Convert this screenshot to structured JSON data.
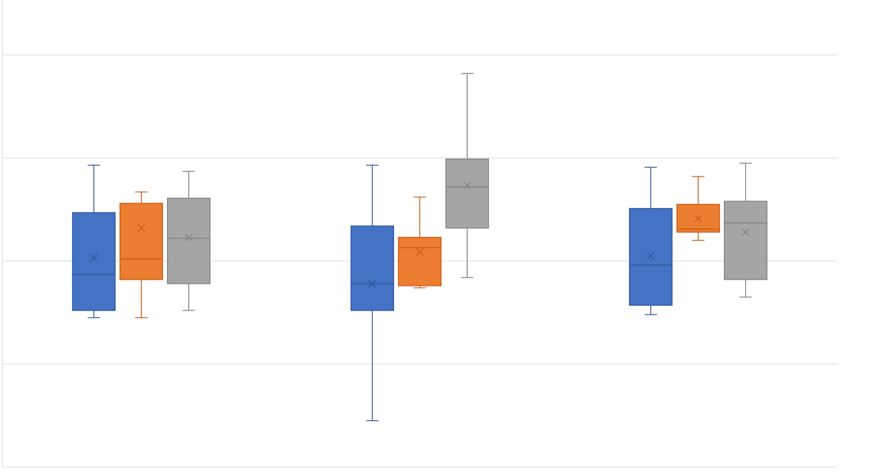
{
  "chart_data": {
    "type": "box",
    "categories": [
      null,
      null,
      null
    ],
    "ylim": [
      0,
      4.5
    ],
    "yticks": [
      0,
      1,
      2,
      3,
      4
    ],
    "grid": true,
    "series": [
      {
        "color": "#4472c4",
        "edge": "#2f5597",
        "min": [
          1.45,
          0.45,
          1.48
        ],
        "q1": [
          1.52,
          1.52,
          1.57
        ],
        "median": [
          1.87,
          1.78,
          1.96
        ],
        "q3": [
          2.47,
          2.34,
          2.51
        ],
        "max": [
          2.93,
          2.93,
          2.91
        ],
        "mean": [
          2.03,
          1.78,
          2.05
        ]
      },
      {
        "color": "#ed7d31",
        "edge": "#c55a11",
        "min": [
          1.45,
          1.74,
          2.2
        ],
        "q1": [
          1.82,
          1.76,
          2.28
        ],
        "median": [
          2.02,
          2.13,
          2.31
        ],
        "q3": [
          2.56,
          2.23,
          2.55
        ],
        "max": [
          2.67,
          2.62,
          2.82
        ],
        "mean": [
          2.32,
          2.09,
          2.41
        ]
      },
      {
        "color": "#a5a5a5",
        "edge": "#7f7f7f",
        "min": [
          1.52,
          1.84,
          1.65
        ],
        "q1": [
          1.78,
          2.32,
          1.82
        ],
        "median": [
          2.22,
          2.72,
          2.37
        ],
        "q3": [
          2.61,
          2.99,
          2.58
        ],
        "max": [
          2.87,
          3.82,
          2.95
        ],
        "mean": [
          2.23,
          2.73,
          2.28
        ]
      }
    ]
  }
}
